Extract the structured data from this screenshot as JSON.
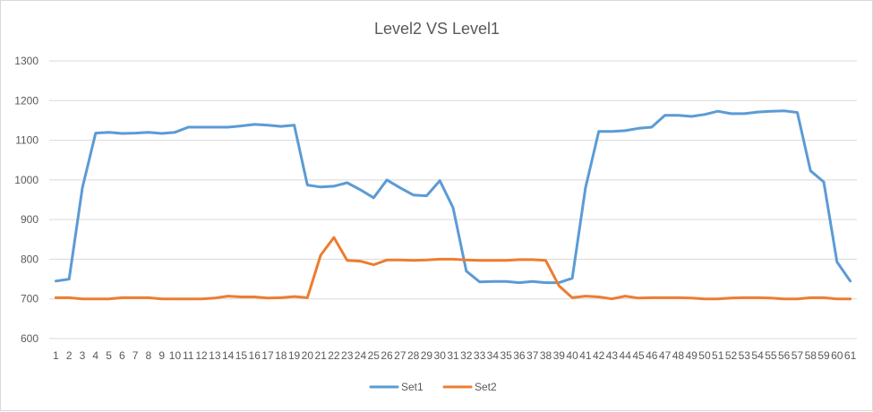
{
  "chart_data": {
    "type": "line",
    "title": "Level2 VS Level1",
    "xlabel": "",
    "ylabel": "",
    "x": [
      1,
      2,
      3,
      4,
      5,
      6,
      7,
      8,
      9,
      10,
      11,
      12,
      13,
      14,
      15,
      16,
      17,
      18,
      19,
      20,
      21,
      22,
      23,
      24,
      25,
      26,
      27,
      28,
      29,
      30,
      31,
      32,
      33,
      34,
      35,
      36,
      37,
      38,
      39,
      40,
      41,
      42,
      43,
      44,
      45,
      46,
      47,
      48,
      49,
      50,
      51,
      52,
      53,
      54,
      55,
      56,
      57,
      58,
      59,
      60,
      61
    ],
    "ylim": [
      600,
      1300
    ],
    "yticks": [
      600,
      700,
      800,
      900,
      1000,
      1100,
      1200,
      1300
    ],
    "grid": true,
    "legend_position": "bottom",
    "series": [
      {
        "name": "Set1",
        "color": "#5b9bd5",
        "values": [
          745,
          750,
          980,
          1118,
          1120,
          1117,
          1118,
          1120,
          1117,
          1120,
          1133,
          1133,
          1133,
          1133,
          1136,
          1140,
          1138,
          1135,
          1138,
          987,
          982,
          984,
          993,
          975,
          955,
          1000,
          980,
          962,
          960,
          998,
          930,
          770,
          743,
          744,
          744,
          741,
          744,
          741,
          741,
          752,
          980,
          1122,
          1122,
          1124,
          1130,
          1133,
          1163,
          1163,
          1160,
          1165,
          1173,
          1167,
          1167,
          1171,
          1173,
          1174,
          1170,
          1023,
          995,
          793,
          745
        ]
      },
      {
        "name": "Set2",
        "color": "#ed7d31",
        "values": [
          703,
          703,
          700,
          700,
          700,
          703,
          703,
          703,
          700,
          700,
          700,
          700,
          702,
          707,
          705,
          705,
          702,
          703,
          706,
          703,
          810,
          855,
          797,
          795,
          786,
          798,
          798,
          797,
          798,
          800,
          800,
          798,
          797,
          797,
          797,
          799,
          799,
          797,
          733,
          703,
          707,
          705,
          700,
          707,
          702,
          703,
          703,
          703,
          702,
          700,
          700,
          702,
          703,
          703,
          702,
          700,
          700,
          703,
          703,
          700,
          700
        ]
      }
    ]
  }
}
